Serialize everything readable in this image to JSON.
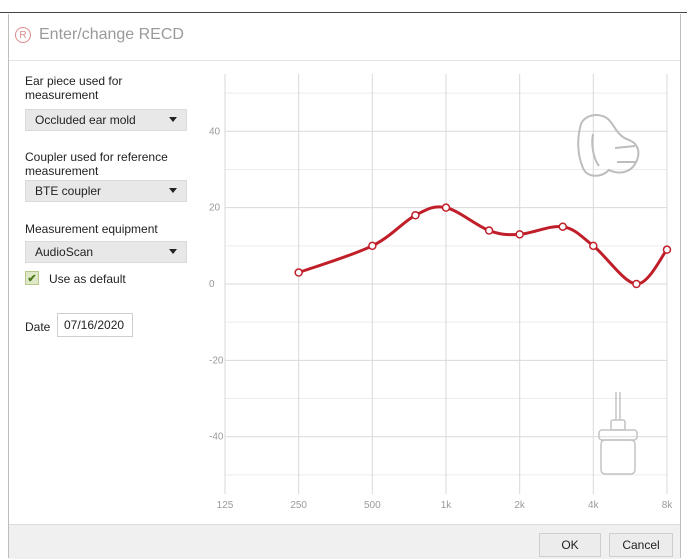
{
  "dialog": {
    "title": "Enter/change RECD",
    "title_icon": "registered-icon"
  },
  "ear_piece": {
    "label": "Ear piece used for measurement",
    "value": "Occluded ear mold"
  },
  "coupler": {
    "label": "Coupler used for reference measurement",
    "value": "BTE coupler"
  },
  "equipment": {
    "label": "Measurement equipment",
    "value": "AudioScan"
  },
  "default_checkbox": {
    "label": "Use as default",
    "checked": true
  },
  "date": {
    "label": "Date",
    "value": "07/16/2020"
  },
  "buttons": {
    "ok": "OK",
    "cancel": "Cancel"
  },
  "colors": {
    "curve": "#c01f2a",
    "grid": "#e4e4e4",
    "accent_check": "#4e7a1d"
  },
  "chart_data": {
    "type": "line",
    "x_scale": "log",
    "x_ticks": [
      "125",
      "250",
      "500",
      "1k",
      "2k",
      "4k",
      "8k"
    ],
    "y_ticks": [
      "40",
      "20",
      "0",
      "-20",
      "-40"
    ],
    "ylim": [
      -55,
      55
    ],
    "xlim": [
      125,
      8000
    ],
    "grid": true,
    "series": [
      {
        "points": [
          {
            "x": 250,
            "y": 3
          },
          {
            "x": 500,
            "y": 10
          },
          {
            "x": 750,
            "y": 18
          },
          {
            "x": 1000,
            "y": 20
          },
          {
            "x": 1500,
            "y": 14
          },
          {
            "x": 2000,
            "y": 13
          },
          {
            "x": 3000,
            "y": 15
          },
          {
            "x": 4000,
            "y": 10
          },
          {
            "x": 6000,
            "y": 0
          },
          {
            "x": 8000,
            "y": 9
          }
        ]
      }
    ]
  }
}
